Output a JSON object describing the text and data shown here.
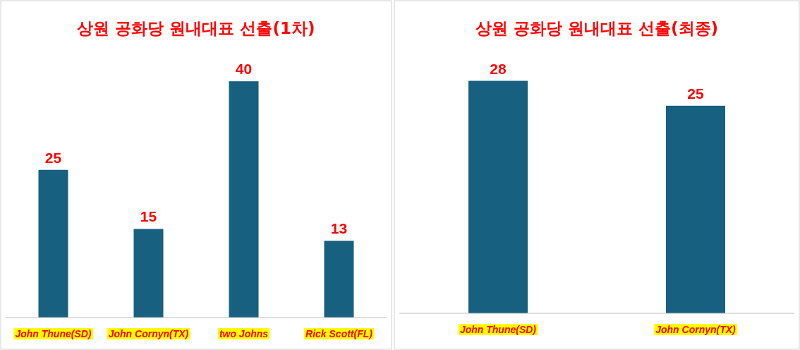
{
  "chart_data": [
    {
      "type": "bar",
      "title": "상원 공화당 원내대표 선출(1차)",
      "categories": [
        "John Thune(SD)",
        "John Cornyn(TX)",
        "two Johns",
        "Rick Scott(FL)"
      ],
      "values": [
        25,
        15,
        40,
        13
      ],
      "color": "#17607f",
      "data_labels": true,
      "tick_labels": "x"
    },
    {
      "type": "bar",
      "title": "상원 공화당 원내대표 선출(최종)",
      "categories": [
        "John Thune(SD)",
        "John Cornyn(TX)"
      ],
      "values": [
        28,
        25
      ],
      "color": "#17607f",
      "data_labels": true,
      "tick_labels": "x"
    }
  ]
}
